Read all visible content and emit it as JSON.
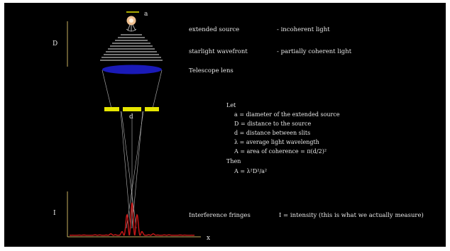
{
  "diagram": {
    "symbols": {
      "a": "a",
      "D": "D",
      "d": "d",
      "I": "I",
      "x": "x"
    },
    "labels": {
      "extended_source": "extended source",
      "incoherent": "- incoherent light",
      "starlight_wavefront": "starlight wavefront",
      "partially_coherent": "- partially coherent light",
      "telescope_lens": "Telescope lens",
      "interference_fringes": "Interference fringes",
      "intensity_note": "I = intensity (this is what we actually measure)"
    },
    "definitions": {
      "let": "Let",
      "lines": [
        "a = diameter of the extended source",
        "D = distance to the source",
        "d = distance between slits",
        "λ = average light wavelength",
        "A = area of coherence = π(d/2)²"
      ],
      "then": "Then",
      "result": "A = λ²D²/a²"
    },
    "colors": {
      "background": "#000000",
      "lens": "#1a1ab8",
      "slits": "#e6e600",
      "fringes": "#cc1818",
      "axes": "#c8b060",
      "source": "#f0c090",
      "wavefront": "#9a9a9a"
    }
  }
}
